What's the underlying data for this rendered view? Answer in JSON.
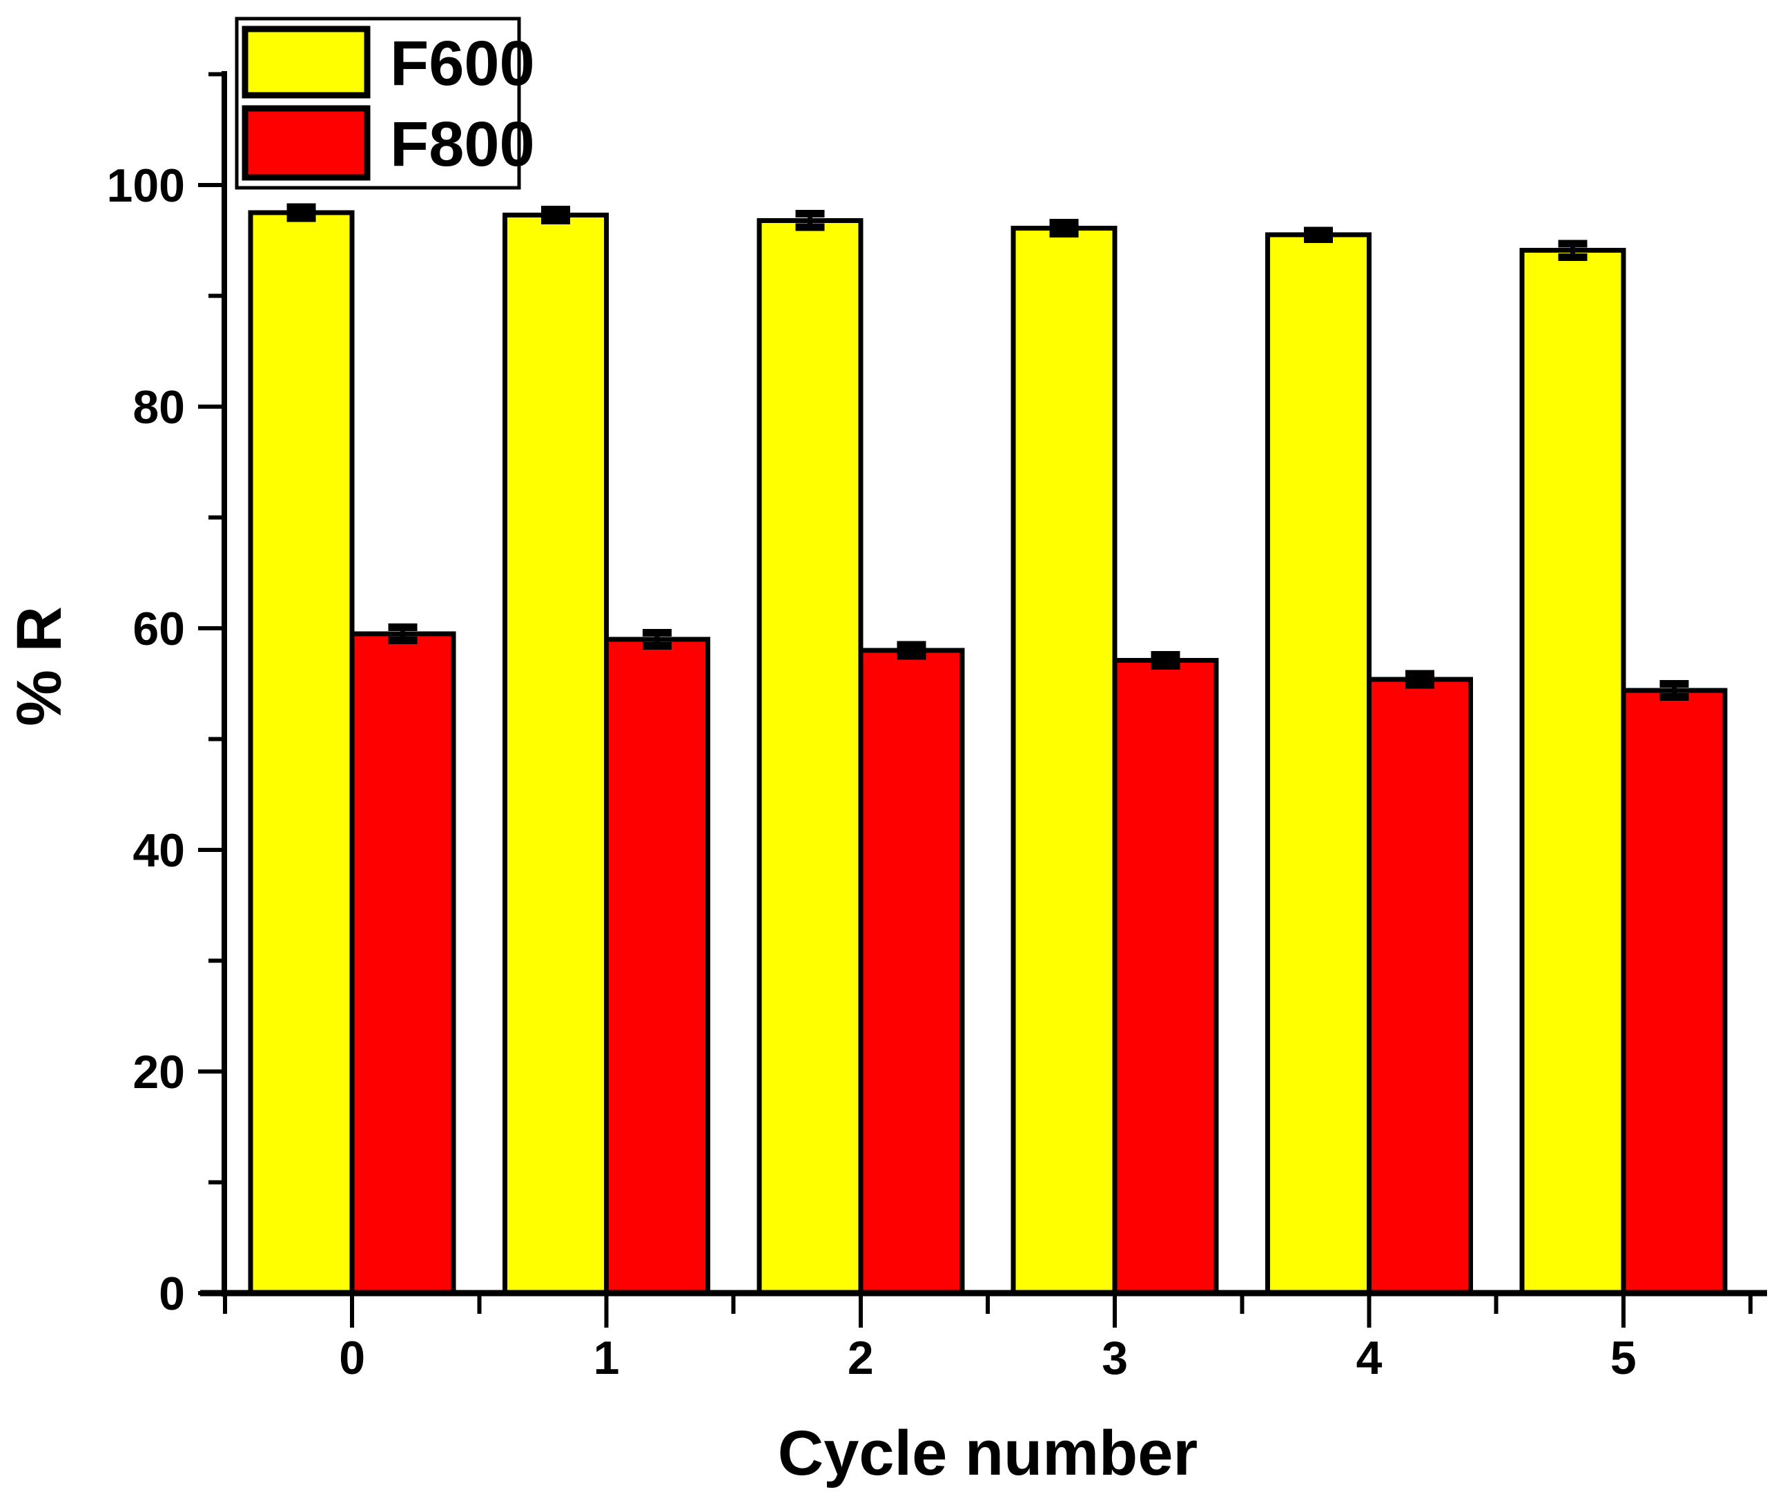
{
  "chart_data": {
    "type": "bar",
    "title": "",
    "xlabel": "Cycle number",
    "ylabel": "% R",
    "categories": [
      "0",
      "1",
      "2",
      "3",
      "4",
      "5"
    ],
    "series": [
      {
        "name": "F600",
        "color": "#ffff00",
        "values": [
          97.5,
          97.3,
          96.8,
          96.1,
          95.5,
          94.1
        ],
        "errors": [
          0.5,
          0.5,
          0.6,
          0.5,
          0.4,
          0.6
        ]
      },
      {
        "name": "F800",
        "color": "#ff0000",
        "values": [
          59.5,
          59.0,
          58.0,
          57.1,
          55.4,
          54.4
        ],
        "errors": [
          0.6,
          0.6,
          0.5,
          0.5,
          0.5,
          0.6
        ]
      }
    ],
    "ylim": [
      0,
      110
    ],
    "yticks": [
      0,
      20,
      40,
      60,
      80,
      100
    ],
    "yticks_minor": [
      10,
      30,
      50,
      70,
      90,
      110
    ],
    "grid": false,
    "legend_position": "top-left",
    "bar_outline_color": "#000000",
    "error_bar_color": "#000000",
    "axis_color": "#000000",
    "background": "#ffffff"
  }
}
